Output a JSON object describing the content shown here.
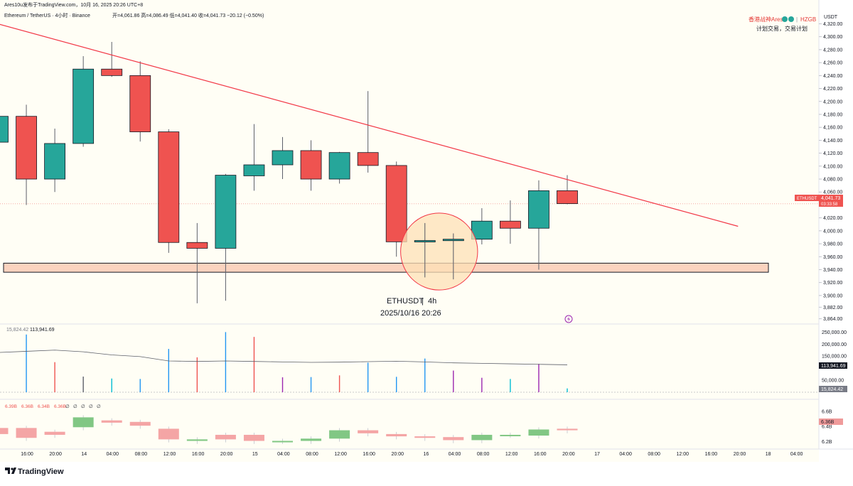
{
  "header": {
    "author_line": "Ares10u发布于TradingView.com，10月 16, 2025 20:26 UTC+8",
    "symbol_line": "Ethereum / TetherUS · 4小时 · Binance",
    "ohlc_line": "开=4,061.86  高=4,086.49  低=4,041.40  收=4,041.73  −20.12 (−0.50%)"
  },
  "watermark": {
    "brand": "香港战神Ares",
    "tag": "HZGB",
    "slogan": "计划交易，交易计划"
  },
  "center_label": {
    "symbol": "ETHUSDT",
    "interval": "4h",
    "datetime": "2025/10/16 20:26"
  },
  "price_axis": {
    "currency": "USDT",
    "ticks": [
      "4,320.00",
      "4,300.00",
      "4,280.00",
      "4,260.00",
      "4,240.00",
      "4,220.00",
      "4,200.00",
      "4,180.00",
      "4,160.00",
      "4,140.00",
      "4,120.00",
      "4,100.00",
      "4,080.00",
      "4,060.00",
      "4,020.00",
      "4,000.00",
      "3,980.00",
      "3,960.00",
      "3,940.00",
      "3,920.00",
      "3,900.00",
      "3,882.00",
      "3,864.00"
    ],
    "last_symbol": "ETHUSDT",
    "last_price": "4,041.73",
    "countdown": "03:33:58"
  },
  "volume_pane": {
    "legend_a": "15,824.42",
    "legend_b": "113,941.69",
    "ticks": [
      "250,000.00",
      "200,000.00",
      "150,000.00",
      "50,000.00"
    ],
    "badge_ma": "113,941.69",
    "badge_vol": "15,824.42"
  },
  "indicator_pane": {
    "legend": [
      "6.39B",
      "6.36B",
      "6.34B",
      "6.36B",
      "∅",
      "∅",
      "∅",
      "∅",
      "∅"
    ],
    "ticks": [
      "6.6B",
      "6.4B",
      "6.2B"
    ],
    "badge": "6.36B"
  },
  "time_axis": [
    "16:00",
    "20:00",
    "14",
    "04:00",
    "08:00",
    "12:00",
    "16:00",
    "20:00",
    "15",
    "04:00",
    "08:00",
    "12:00",
    "16:00",
    "20:00",
    "16",
    "04:00",
    "08:00",
    "12:00",
    "16:00",
    "20:00",
    "17",
    "04:00",
    "08:00",
    "12:00",
    "16:00",
    "20:00",
    "18",
    "04:00"
  ],
  "footer": {
    "logo_text": "TradingView"
  },
  "colors": {
    "up": "#26a69a",
    "down": "#ef5350",
    "trendline": "#f23645",
    "zone_fill": "#fbd3bf",
    "highlight_circle": "#fde0b6"
  },
  "chart_data": {
    "type": "candlestick",
    "symbol": "ETHUSDT",
    "interval": "4h",
    "ylim": [
      3860,
      4330
    ],
    "candles": [
      {
        "time": "10-13 12:00",
        "open": 4137,
        "high": 4177,
        "low": 4137,
        "close": 4177
      },
      {
        "time": "10-13 16:00",
        "open": 4177,
        "high": 4195,
        "low": 4040,
        "close": 4080
      },
      {
        "time": "10-13 20:00",
        "open": 4080,
        "high": 4158,
        "low": 4060,
        "close": 4135
      },
      {
        "time": "10-14 00:00",
        "open": 4135,
        "high": 4270,
        "low": 4130,
        "close": 4250
      },
      {
        "time": "10-14 04:00",
        "open": 4250,
        "high": 4292,
        "low": 4238,
        "close": 4240
      },
      {
        "time": "10-14 08:00",
        "open": 4240,
        "high": 4262,
        "low": 4138,
        "close": 4153
      },
      {
        "time": "10-14 12:00",
        "open": 4153,
        "high": 4157,
        "low": 3966,
        "close": 3982
      },
      {
        "time": "10-14 16:00",
        "open": 3982,
        "high": 4012,
        "low": 3888,
        "close": 3973
      },
      {
        "time": "10-14 20:00",
        "open": 3973,
        "high": 4088,
        "low": 3892,
        "close": 4086
      },
      {
        "time": "10-15 00:00",
        "open": 4085,
        "high": 4165,
        "low": 4062,
        "close": 4102
      },
      {
        "time": "10-15 04:00",
        "open": 4102,
        "high": 4145,
        "low": 4080,
        "close": 4124
      },
      {
        "time": "10-15 08:00",
        "open": 4124,
        "high": 4140,
        "low": 4062,
        "close": 4080
      },
      {
        "time": "10-15 12:00",
        "open": 4080,
        "high": 4122,
        "low": 4073,
        "close": 4121
      },
      {
        "time": "10-15 16:00",
        "open": 4121,
        "high": 4216,
        "low": 4090,
        "close": 4101
      },
      {
        "time": "10-15 20:00",
        "open": 4101,
        "high": 4107,
        "low": 3960,
        "close": 3983
      },
      {
        "time": "10-16 00:00",
        "open": 3983,
        "high": 4012,
        "low": 3928,
        "close": 3985
      },
      {
        "time": "10-16 04:00",
        "open": 3985,
        "high": 3996,
        "low": 3925,
        "close": 3987
      },
      {
        "time": "10-16 08:00",
        "open": 3987,
        "high": 4035,
        "low": 3979,
        "close": 4015
      },
      {
        "time": "10-16 12:00",
        "open": 4015,
        "high": 4047,
        "low": 3980,
        "close": 4004
      },
      {
        "time": "10-16 16:00",
        "open": 4004,
        "high": 4078,
        "low": 3940,
        "close": 4062
      },
      {
        "time": "10-16 20:00",
        "open": 4062,
        "high": 4086,
        "low": 4041,
        "close": 4042
      }
    ],
    "volume": {
      "values": [
        115000,
        240000,
        125000,
        65000,
        57000,
        55000,
        180000,
        145000,
        250000,
        230000,
        62000,
        63000,
        70000,
        123000,
        64000,
        140000,
        90000,
        60000,
        55000,
        118000,
        15824
      ],
      "ma": [
        165000,
        170000,
        175000,
        168000,
        155000,
        148000,
        130000,
        128000,
        130000,
        128000,
        126000,
        124000,
        125000,
        127000,
        129000,
        126000,
        122000,
        120000,
        118000,
        116000,
        113942
      ],
      "ylim": [
        0,
        260000
      ]
    },
    "indicator": {
      "bars": [
        {
          "from": 6.38,
          "to": 6.3
        },
        {
          "from": 6.38,
          "to": 6.25
        },
        {
          "from": 6.33,
          "to": 6.29
        },
        {
          "from": 6.39,
          "to": 6.52
        },
        {
          "from": 6.48,
          "to": 6.45
        },
        {
          "from": 6.46,
          "to": 6.41
        },
        {
          "from": 6.37,
          "to": 6.23
        },
        {
          "from": 6.21,
          "to": 6.23
        },
        {
          "from": 6.29,
          "to": 6.23
        },
        {
          "from": 6.29,
          "to": 6.21
        },
        {
          "from": 6.21,
          "to": 6.21
        },
        {
          "from": 6.21,
          "to": 6.24
        },
        {
          "from": 6.24,
          "to": 6.35
        },
        {
          "from": 6.35,
          "to": 6.31
        },
        {
          "from": 6.3,
          "to": 6.27
        },
        {
          "from": 6.27,
          "to": 6.25
        },
        {
          "from": 6.26,
          "to": 6.22
        },
        {
          "from": 6.22,
          "to": 6.29
        },
        {
          "from": 6.29,
          "to": 6.29
        },
        {
          "from": 6.28,
          "to": 6.36
        },
        {
          "from": 6.37,
          "to": 6.35
        }
      ],
      "ylim": [
        6.14,
        6.72
      ]
    },
    "trendline": {
      "start": {
        "time": "10-13 12:00",
        "price": 4320
      },
      "end": {
        "time": "10-17 20:00",
        "price": 4007
      }
    },
    "support_zone": {
      "high": 3950,
      "low": 3936
    },
    "highlight_circle": {
      "center_time": "10-16 02:00",
      "center_price": 3968,
      "radius_price": 34
    }
  }
}
